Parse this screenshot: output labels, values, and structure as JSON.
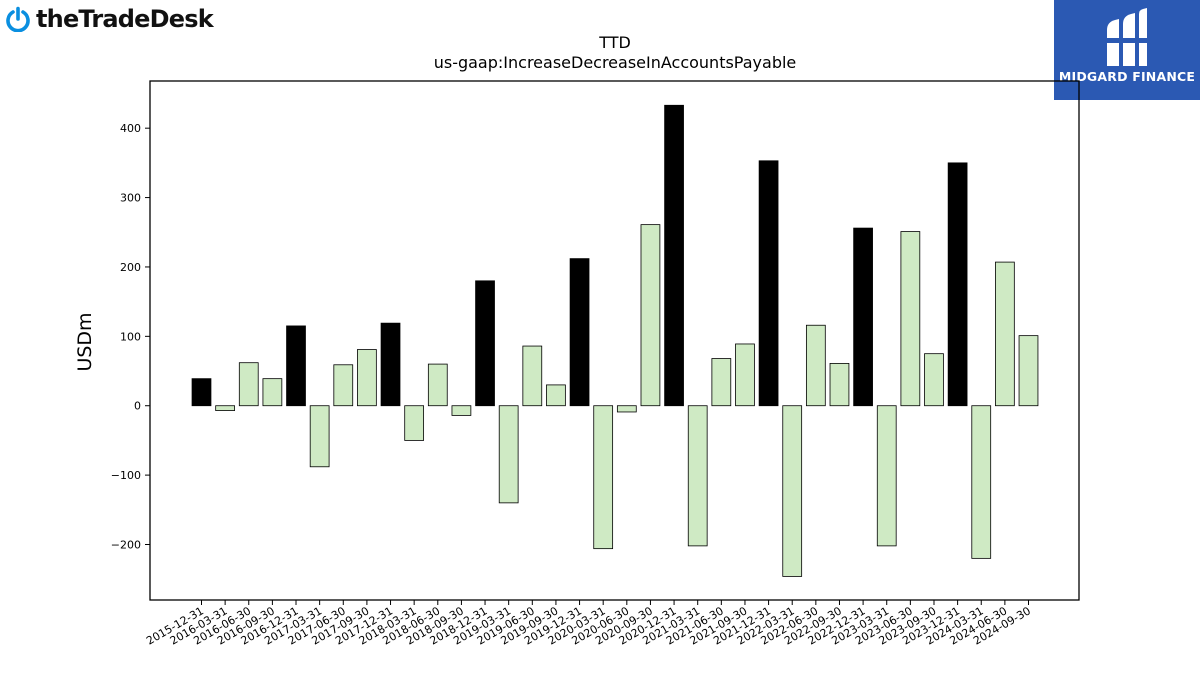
{
  "logos": {
    "left_text": "theTradeDesk",
    "right_text": "MIDGARD FINANCE"
  },
  "chart_data": {
    "type": "bar",
    "title": "TTD",
    "subtitle": "us-gaap:IncreaseDecreaseInAccountsPayable",
    "xlabel": "",
    "ylabel": "USDm",
    "ylim": [
      -280,
      468
    ],
    "yticks": [
      -200,
      -100,
      0,
      100,
      200,
      300,
      400
    ],
    "grid": false,
    "colors": {
      "q4": "#000000",
      "other": "#cfeac4",
      "edge": "#000000"
    },
    "categories": [
      "2015-12-31",
      "2016-03-31",
      "2016-06-30",
      "2016-09-30",
      "2016-12-31",
      "2017-03-31",
      "2017-06-30",
      "2017-09-30",
      "2017-12-31",
      "2018-03-31",
      "2018-06-30",
      "2018-09-30",
      "2018-12-31",
      "2019-03-31",
      "2019-06-30",
      "2019-09-30",
      "2019-12-31",
      "2020-03-31",
      "2020-06-30",
      "2020-09-30",
      "2020-12-31",
      "2021-03-31",
      "2021-06-30",
      "2021-09-30",
      "2021-12-31",
      "2022-03-31",
      "2022-06-30",
      "2022-09-30",
      "2022-12-31",
      "2023-03-31",
      "2023-06-30",
      "2023-09-30",
      "2023-12-31",
      "2024-03-31",
      "2024-06-30",
      "2024-09-30"
    ],
    "values": [
      39,
      -7,
      62,
      39,
      115,
      -88,
      59,
      81,
      119,
      -50,
      60,
      -14,
      180,
      -140,
      86,
      30,
      212,
      -206,
      -9,
      261,
      433,
      -202,
      68,
      89,
      353,
      -246,
      116,
      61,
      256,
      -202,
      251,
      75,
      350,
      -220,
      207,
      101
    ]
  }
}
